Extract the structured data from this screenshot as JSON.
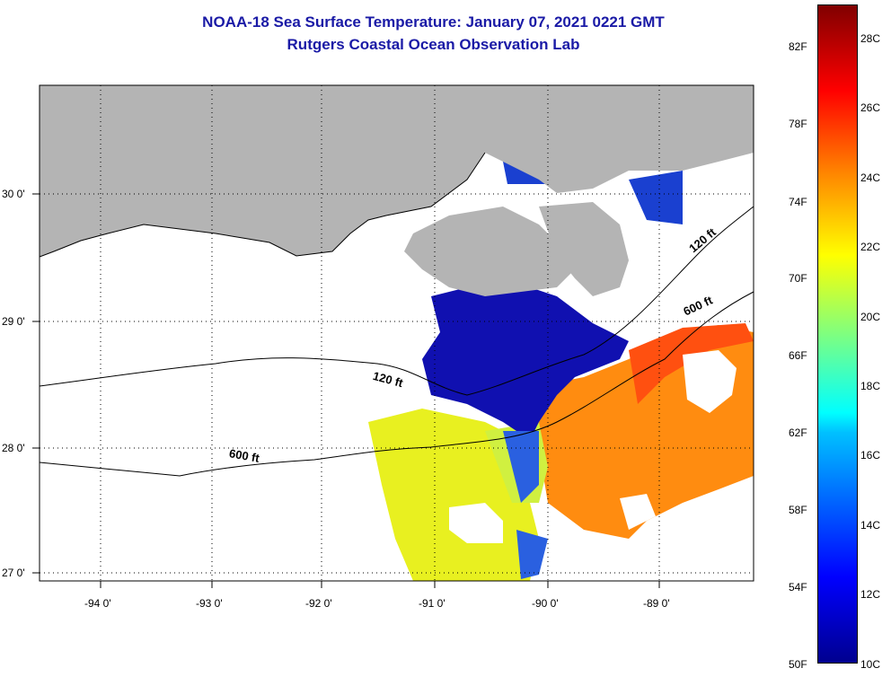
{
  "title_line1": "NOAA-18 Sea Surface Temperature:  January 07, 2021 0221 GMT",
  "title_line2": "Rutgers Coastal Ocean Observation Lab",
  "lat_labels": [
    "30 0'",
    "29 0'",
    "28 0'",
    "27 0'"
  ],
  "lon_labels": [
    "-94 0'",
    "-93 0'",
    "-92 0'",
    "-91 0'",
    "-90 0'",
    "-89 0'"
  ],
  "isobath_labels": [
    "120 ft",
    "600 ft",
    "120 ft",
    "600 ft"
  ],
  "colorbar_f": [
    "82F",
    "78F",
    "74F",
    "70F",
    "66F",
    "62F",
    "58F",
    "54F",
    "50F"
  ],
  "colorbar_c": [
    "28C",
    "26C",
    "24C",
    "22C",
    "20C",
    "18C",
    "16C",
    "14C",
    "12C",
    "10C"
  ],
  "colors": {
    "land": "#b4b4b4",
    "title": "#1a1aa6"
  }
}
